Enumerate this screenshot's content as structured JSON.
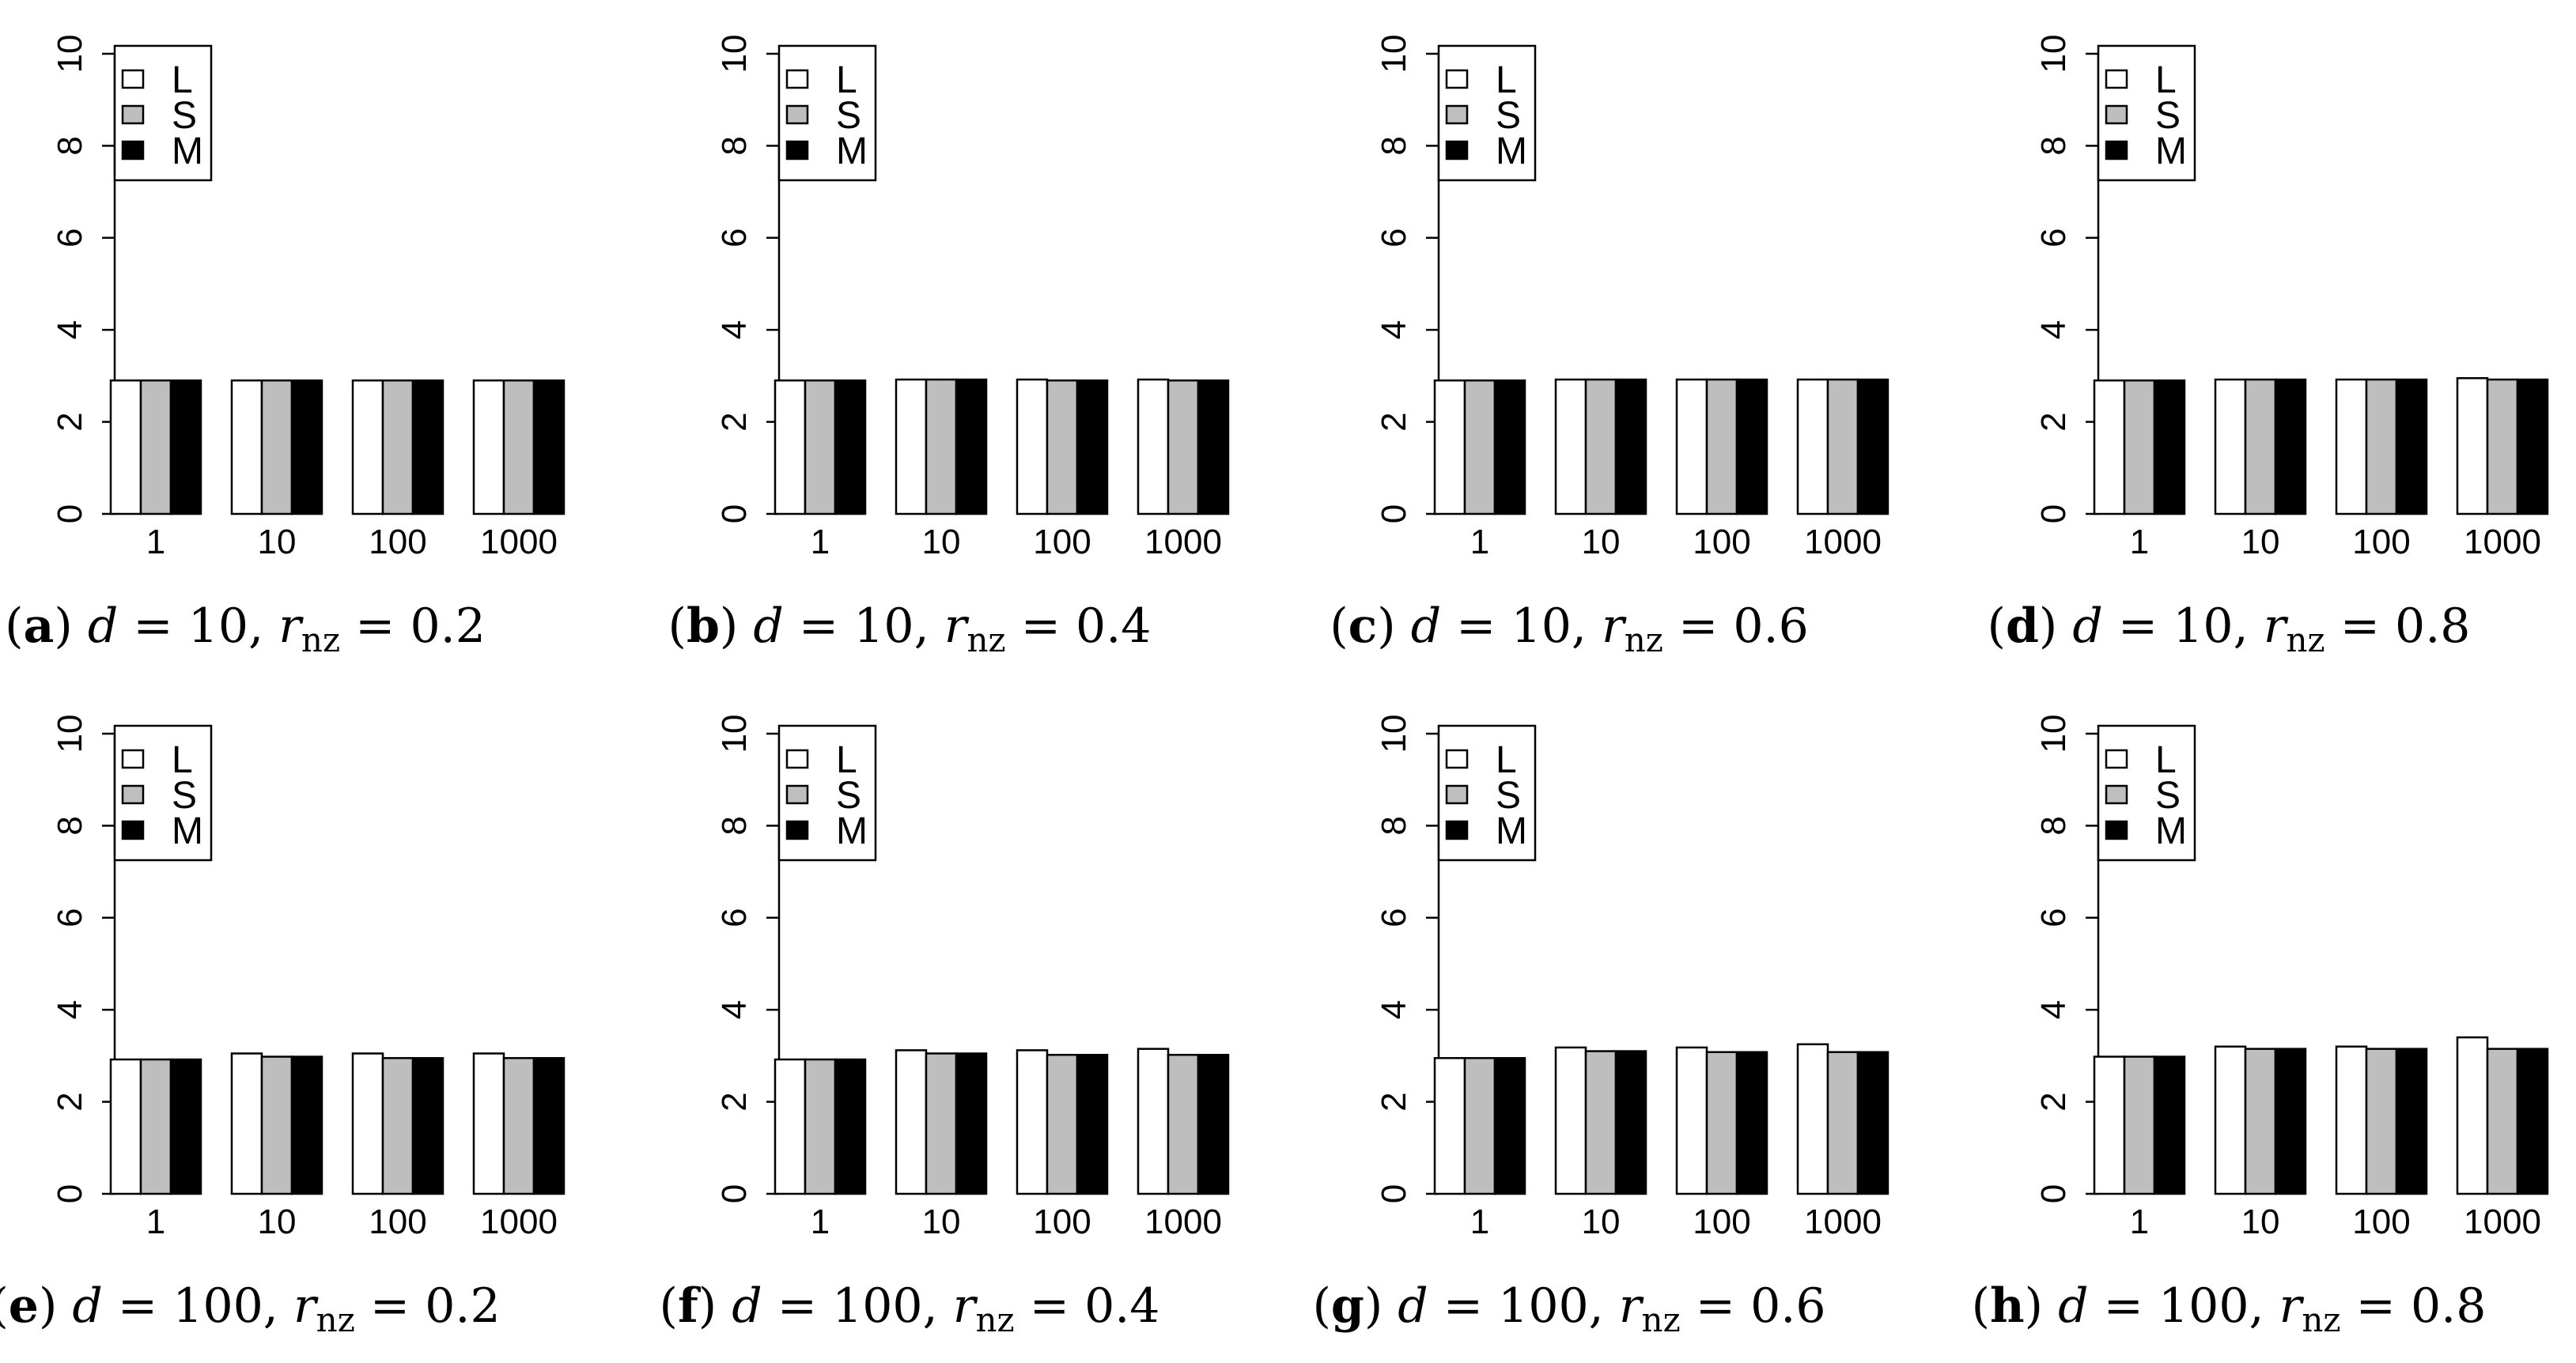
{
  "colors": {
    "L": "#ffffff",
    "S": "#bebebe",
    "M": "#000000",
    "stroke": "#000000"
  },
  "chart_data": [
    {
      "type": "bar",
      "panel_id": "a",
      "d": "10",
      "rnz": "0.2",
      "categories": [
        "1",
        "10",
        "100",
        "1000"
      ],
      "series": [
        {
          "name": "L",
          "values": [
            2.9,
            2.9,
            2.9,
            2.9
          ]
        },
        {
          "name": "S",
          "values": [
            2.9,
            2.9,
            2.9,
            2.9
          ]
        },
        {
          "name": "M",
          "values": [
            2.9,
            2.9,
            2.9,
            2.9
          ]
        }
      ],
      "ylim": [
        0,
        10
      ],
      "yticks": [
        "0",
        "2",
        "4",
        "6",
        "8",
        "10"
      ],
      "legend": "top-left",
      "grid": false
    },
    {
      "type": "bar",
      "panel_id": "b",
      "d": "10",
      "rnz": "0.4",
      "categories": [
        "1",
        "10",
        "100",
        "1000"
      ],
      "series": [
        {
          "name": "L",
          "values": [
            2.9,
            2.92,
            2.92,
            2.92
          ]
        },
        {
          "name": "S",
          "values": [
            2.9,
            2.92,
            2.9,
            2.9
          ]
        },
        {
          "name": "M",
          "values": [
            2.9,
            2.92,
            2.9,
            2.9
          ]
        }
      ],
      "ylim": [
        0,
        10
      ],
      "yticks": [
        "0",
        "2",
        "4",
        "6",
        "8",
        "10"
      ],
      "legend": "top-left",
      "grid": false
    },
    {
      "type": "bar",
      "panel_id": "c",
      "d": "10",
      "rnz": "0.6",
      "categories": [
        "1",
        "10",
        "100",
        "1000"
      ],
      "series": [
        {
          "name": "L",
          "values": [
            2.9,
            2.92,
            2.92,
            2.92
          ]
        },
        {
          "name": "S",
          "values": [
            2.9,
            2.92,
            2.92,
            2.92
          ]
        },
        {
          "name": "M",
          "values": [
            2.9,
            2.92,
            2.92,
            2.92
          ]
        }
      ],
      "ylim": [
        0,
        10
      ],
      "yticks": [
        "0",
        "2",
        "4",
        "6",
        "8",
        "10"
      ],
      "legend": "top-left",
      "grid": false
    },
    {
      "type": "bar",
      "panel_id": "d",
      "d": "10",
      "rnz": "0.8",
      "categories": [
        "1",
        "10",
        "100",
        "1000"
      ],
      "series": [
        {
          "name": "L",
          "values": [
            2.9,
            2.92,
            2.92,
            2.95
          ]
        },
        {
          "name": "S",
          "values": [
            2.9,
            2.92,
            2.92,
            2.92
          ]
        },
        {
          "name": "M",
          "values": [
            2.9,
            2.92,
            2.92,
            2.92
          ]
        }
      ],
      "ylim": [
        0,
        10
      ],
      "yticks": [
        "0",
        "2",
        "4",
        "6",
        "8",
        "10"
      ],
      "legend": "top-left",
      "grid": false
    },
    {
      "type": "bar",
      "panel_id": "e",
      "d": "100",
      "rnz": "0.2",
      "categories": [
        "1",
        "10",
        "100",
        "1000"
      ],
      "series": [
        {
          "name": "L",
          "values": [
            2.92,
            3.05,
            3.05,
            3.05
          ]
        },
        {
          "name": "S",
          "values": [
            2.92,
            2.98,
            2.95,
            2.95
          ]
        },
        {
          "name": "M",
          "values": [
            2.92,
            2.98,
            2.95,
            2.95
          ]
        }
      ],
      "ylim": [
        0,
        10
      ],
      "yticks": [
        "0",
        "2",
        "4",
        "6",
        "8",
        "10"
      ],
      "legend": "top-left",
      "grid": false
    },
    {
      "type": "bar",
      "panel_id": "f",
      "d": "100",
      "rnz": "0.4",
      "categories": [
        "1",
        "10",
        "100",
        "1000"
      ],
      "series": [
        {
          "name": "L",
          "values": [
            2.92,
            3.12,
            3.12,
            3.15
          ]
        },
        {
          "name": "S",
          "values": [
            2.92,
            3.05,
            3.02,
            3.02
          ]
        },
        {
          "name": "M",
          "values": [
            2.92,
            3.05,
            3.02,
            3.02
          ]
        }
      ],
      "ylim": [
        0,
        10
      ],
      "yticks": [
        "0",
        "2",
        "4",
        "6",
        "8",
        "10"
      ],
      "legend": "top-left",
      "grid": false
    },
    {
      "type": "bar",
      "panel_id": "g",
      "d": "100",
      "rnz": "0.6",
      "categories": [
        "1",
        "10",
        "100",
        "1000"
      ],
      "series": [
        {
          "name": "L",
          "values": [
            2.95,
            3.18,
            3.18,
            3.25
          ]
        },
        {
          "name": "S",
          "values": [
            2.95,
            3.1,
            3.08,
            3.08
          ]
        },
        {
          "name": "M",
          "values": [
            2.95,
            3.1,
            3.08,
            3.08
          ]
        }
      ],
      "ylim": [
        0,
        10
      ],
      "yticks": [
        "0",
        "2",
        "4",
        "6",
        "8",
        "10"
      ],
      "legend": "top-left",
      "grid": false
    },
    {
      "type": "bar",
      "panel_id": "h",
      "d": "100",
      "rnz": "0.8",
      "categories": [
        "1",
        "10",
        "100",
        "1000"
      ],
      "series": [
        {
          "name": "L",
          "values": [
            2.98,
            3.2,
            3.2,
            3.4
          ]
        },
        {
          "name": "S",
          "values": [
            2.98,
            3.15,
            3.15,
            3.15
          ]
        },
        {
          "name": "M",
          "values": [
            2.98,
            3.15,
            3.15,
            3.15
          ]
        }
      ],
      "ylim": [
        0,
        10
      ],
      "yticks": [
        "0",
        "2",
        "4",
        "6",
        "8",
        "10"
      ],
      "legend": "top-left",
      "grid": false
    }
  ]
}
